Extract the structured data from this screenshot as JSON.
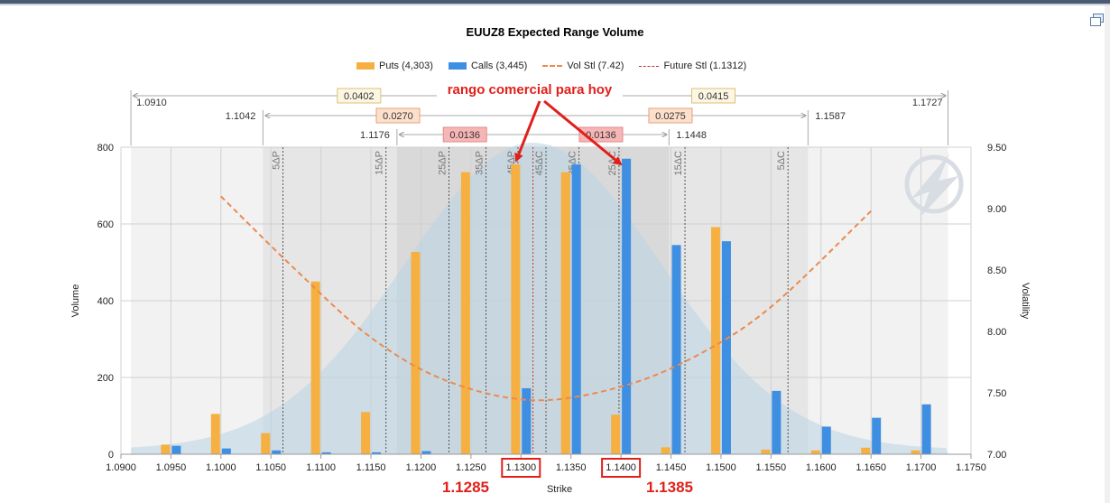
{
  "window": {
    "restore_icon": "restore-window-icon"
  },
  "chart_data": {
    "type": "bar",
    "title": "EUUZ8 Expected Range Volume",
    "xlabel": "Strike",
    "ylabel": "Volume",
    "y2label": "Volatility",
    "xlim": [
      1.09,
      1.175
    ],
    "ylim": [
      0,
      800
    ],
    "y2lim": [
      7.0,
      9.5
    ],
    "x_ticks": [
      "1.0900",
      "1.0950",
      "1.1000",
      "1.1050",
      "1.1100",
      "1.1150",
      "1.1200",
      "1.1250",
      "1.1300",
      "1.1350",
      "1.1400",
      "1.1450",
      "1.1500",
      "1.1550",
      "1.1600",
      "1.1650",
      "1.1700",
      "1.1750"
    ],
    "y_ticks": [
      "0",
      "200",
      "400",
      "600",
      "800"
    ],
    "y2_ticks": [
      "7.00",
      "7.50",
      "8.00",
      "8.50",
      "9.00",
      "9.50"
    ],
    "grid": true,
    "legend_position": "top",
    "legend": [
      "Puts (4,303)",
      "Calls (3,445)",
      "Vol Stl (7.42)",
      "Future Stl (1.1312)"
    ],
    "colors": {
      "puts": "#f5b041",
      "calls": "#3e8ee2",
      "vol": "#ec8a4d",
      "future": "#c0392b",
      "annotation": "#e0201a",
      "bell": "#b9d3e6"
    },
    "series": [
      {
        "name": "Puts (4,303)",
        "points": [
          {
            "x": 1.095,
            "y": 25
          },
          {
            "x": 1.1,
            "y": 105
          },
          {
            "x": 1.105,
            "y": 55
          },
          {
            "x": 1.11,
            "y": 450
          },
          {
            "x": 1.115,
            "y": 110
          },
          {
            "x": 1.12,
            "y": 527
          },
          {
            "x": 1.125,
            "y": 735
          },
          {
            "x": 1.13,
            "y": 755
          },
          {
            "x": 1.135,
            "y": 735
          },
          {
            "x": 1.14,
            "y": 103
          },
          {
            "x": 1.145,
            "y": 18
          },
          {
            "x": 1.15,
            "y": 592
          },
          {
            "x": 1.155,
            "y": 12
          },
          {
            "x": 1.16,
            "y": 10
          },
          {
            "x": 1.165,
            "y": 17
          },
          {
            "x": 1.17,
            "y": 10
          }
        ]
      },
      {
        "name": "Calls (3,445)",
        "points": [
          {
            "x": 1.095,
            "y": 22
          },
          {
            "x": 1.1,
            "y": 15
          },
          {
            "x": 1.105,
            "y": 10
          },
          {
            "x": 1.11,
            "y": 5
          },
          {
            "x": 1.115,
            "y": 5
          },
          {
            "x": 1.12,
            "y": 8
          },
          {
            "x": 1.13,
            "y": 172
          },
          {
            "x": 1.135,
            "y": 755
          },
          {
            "x": 1.14,
            "y": 770
          },
          {
            "x": 1.145,
            "y": 545
          },
          {
            "x": 1.15,
            "y": 555
          },
          {
            "x": 1.155,
            "y": 165
          },
          {
            "x": 1.16,
            "y": 72
          },
          {
            "x": 1.165,
            "y": 95
          },
          {
            "x": 1.17,
            "y": 130
          }
        ]
      },
      {
        "name": "Vol Stl (7.42)",
        "axis": "right",
        "x": [
          1.1,
          1.1075,
          1.115,
          1.1225,
          1.1312,
          1.14,
          1.1475,
          1.155,
          1.165
        ],
        "y": [
          9.1,
          8.5,
          7.95,
          7.6,
          7.44,
          7.55,
          7.8,
          8.2,
          8.98
        ]
      },
      {
        "name": "Future Stl (1.1312)",
        "x": 1.1312
      }
    ],
    "delta_lines": [
      {
        "label": "5ΔP",
        "x": 1.1062
      },
      {
        "label": "15ΔP",
        "x": 1.1165
      },
      {
        "label": "25ΔP",
        "x": 1.1228
      },
      {
        "label": "35ΔP",
        "x": 1.1265
      },
      {
        "label": "45ΔP",
        "x": 1.1297
      },
      {
        "label": "45ΔC",
        "x": 1.1325
      },
      {
        "label": "35ΔC",
        "x": 1.1358
      },
      {
        "label": "25ΔC",
        "x": 1.1398
      },
      {
        "label": "15ΔC",
        "x": 1.1464
      },
      {
        "label": "5ΔC",
        "x": 1.1567
      }
    ],
    "ranges": [
      {
        "low": "1.0910",
        "high": "1.1727",
        "width": "0.0402",
        "width_right": "0.0415",
        "x_low": 1.091,
        "x_high": 1.1727,
        "level": "outer"
      },
      {
        "low": "1.1042",
        "high": "1.1587",
        "width": "0.0270",
        "width_right": "0.0275",
        "x_low": 1.1042,
        "x_high": 1.1587,
        "level": "middle"
      },
      {
        "low": "1.1176",
        "high": "1.1448",
        "width": "0.0136",
        "width_right": "0.0136",
        "x_low": 1.1176,
        "x_high": 1.1448,
        "level": "inner"
      }
    ],
    "annotations": {
      "callout": "rango comercial para hoy",
      "low_value": "1.1285",
      "high_value": "1.1385",
      "boxed_ticks": [
        "1.1300",
        "1.1400"
      ]
    }
  }
}
